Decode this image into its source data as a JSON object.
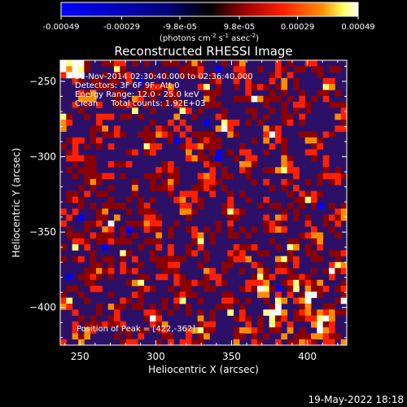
{
  "chart_data": {
    "type": "heatmap",
    "title": "Reconstructed RHESSI Image",
    "xlabel": "Heliocentric X (arcsec)",
    "ylabel": "Heliocentric Y (arcsec)",
    "xlim": [
      237,
      426
    ],
    "ylim": [
      -425,
      -236
    ],
    "x_ticks": [
      250,
      300,
      350,
      400
    ],
    "y_ticks": [
      -250,
      -300,
      -350,
      -400
    ],
    "colorbar": {
      "range": [
        -0.00049,
        0.00049
      ],
      "tick_values": [
        -0.00049,
        -0.00029,
        -9.8e-05,
        9.8e-05,
        0.00029,
        0.00049
      ],
      "tick_labels": [
        "-0.00049",
        "-0.00029",
        "-9.8e-05",
        "9.8e-05",
        "0.00029",
        "0.00049"
      ],
      "unit_main": "(photons cm",
      "unit_exp1": "-2",
      "unit_mid": " s",
      "unit_exp2": "-1",
      "unit_mid2": " asec",
      "unit_exp3": "-2",
      "unit_close": ")"
    },
    "info_lines": [
      "21-Nov-2014 02:30:40.000 to 02:36:40.000",
      "Detectors: 3F 6F 9F, Att 0",
      "Energy Range: 12.0 - 25.0 keV",
      "Clean     Total counts: 1.92E+03"
    ],
    "peak_label": "Position of Peak = [422,-362]",
    "peak": [
      422,
      -362
    ],
    "grid": false,
    "legend": "none",
    "colormap": [
      "#0000ff",
      "#2a1070",
      "#8b0000",
      "#ff2000",
      "#ff8c00",
      "#ffff80",
      "#ffffff"
    ]
  },
  "footer": {
    "timestamp": "19-May-2022 18:18"
  }
}
